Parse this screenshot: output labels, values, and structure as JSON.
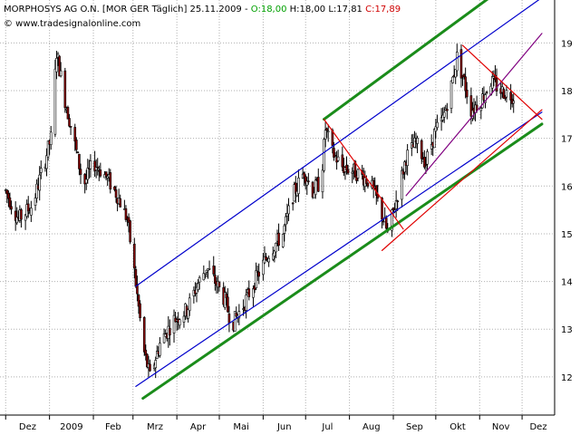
{
  "header": {
    "title_prefix": "MORPHOSYS AG O.N. [MOR GER  Täglich] 25.11.2009 - ",
    "open_text": "O:18,00",
    "high_text": " H:18,00",
    "low_text": " L:17,81",
    "close_text": " C:17,89",
    "copyright": "© www.tradesignalonline.com"
  },
  "colors": {
    "candle_up": "#ffffff",
    "candle_down": "#8b0000",
    "candle_outline": "#000000",
    "channel_blue": "#0000cc",
    "channel_green": "#1a8c1a",
    "triangle_red": "#e00000",
    "trend_purple": "#800080",
    "open_value": "#00a000",
    "close_value": "#d00000"
  },
  "chart_data": {
    "type": "candlestick",
    "title": "MORPHOSYS AG O.N. [MOR GER  Täglich] 25.11.2009",
    "ohlc_last": {
      "open": 18.0,
      "high": 18.0,
      "low": 17.81,
      "close": 17.89
    },
    "y_axis": {
      "position": "right",
      "range": [
        11.2,
        19.9
      ],
      "ticks": [
        "12",
        "13",
        "14",
        "15",
        "16",
        "17",
        "18",
        "19"
      ]
    },
    "x_axis": {
      "ticks": [
        "Dez",
        "2009",
        "Feb",
        "Mrz",
        "Apr",
        "Mai",
        "Jun",
        "Jul",
        "Aug",
        "Sep",
        "Okt",
        "Nov",
        "Dez"
      ]
    },
    "grid": true,
    "price_path": [
      [
        "2008-12-01",
        15.9
      ],
      [
        "2008-12-10",
        15.3
      ],
      [
        "2008-12-20",
        15.6
      ],
      [
        "2009-01-02",
        17.0
      ],
      [
        "2009-01-06",
        18.8
      ],
      [
        "2009-01-12",
        17.8
      ],
      [
        "2009-01-18",
        17.0
      ],
      [
        "2009-01-25",
        16.0
      ],
      [
        "2009-02-01",
        16.5
      ],
      [
        "2009-02-10",
        16.2
      ],
      [
        "2009-02-18",
        15.8
      ],
      [
        "2009-02-25",
        15.3
      ],
      [
        "2009-03-02",
        14.2
      ],
      [
        "2009-03-06",
        13.2
      ],
      [
        "2009-03-09",
        12.5
      ],
      [
        "2009-03-13",
        12.0
      ],
      [
        "2009-03-20",
        12.7
      ],
      [
        "2009-03-30",
        13.2
      ],
      [
        "2009-04-08",
        13.4
      ],
      [
        "2009-04-15",
        13.9
      ],
      [
        "2009-04-22",
        14.3
      ],
      [
        "2009-04-30",
        13.9
      ],
      [
        "2009-05-05",
        13.6
      ],
      [
        "2009-05-10",
        13.1
      ],
      [
        "2009-05-18",
        13.5
      ],
      [
        "2009-05-26",
        14.0
      ],
      [
        "2009-06-05",
        14.6
      ],
      [
        "2009-06-15",
        15.0
      ],
      [
        "2009-06-22",
        15.8
      ],
      [
        "2009-06-30",
        16.3
      ],
      [
        "2009-07-06",
        15.9
      ],
      [
        "2009-07-12",
        16.1
      ],
      [
        "2009-07-15",
        17.2
      ],
      [
        "2009-07-20",
        16.7
      ],
      [
        "2009-07-27",
        16.4
      ],
      [
        "2009-08-05",
        16.3
      ],
      [
        "2009-08-15",
        16.1
      ],
      [
        "2009-08-22",
        15.6
      ],
      [
        "2009-08-28",
        15.0
      ],
      [
        "2009-09-03",
        15.7
      ],
      [
        "2009-09-10",
        16.6
      ],
      [
        "2009-09-17",
        16.9
      ],
      [
        "2009-09-24",
        16.5
      ],
      [
        "2009-09-30",
        17.1
      ],
      [
        "2009-10-06",
        17.4
      ],
      [
        "2009-10-12",
        18.1
      ],
      [
        "2009-10-16",
        18.7
      ],
      [
        "2009-10-21",
        18.2
      ],
      [
        "2009-10-26",
        17.6
      ],
      [
        "2009-11-02",
        17.8
      ],
      [
        "2009-11-09",
        18.2
      ],
      [
        "2009-11-16",
        18.0
      ],
      [
        "2009-11-25",
        17.89
      ]
    ],
    "trendlines": [
      {
        "kind": "channel-upper",
        "color": "blue",
        "from": [
          "2009-03-03",
          13.9
        ],
        "to": [
          "2009-12-15",
          19.95
        ]
      },
      {
        "kind": "channel-lower",
        "color": "blue",
        "from": [
          "2009-03-03",
          11.8
        ],
        "to": [
          "2009-12-15",
          17.55
        ]
      },
      {
        "kind": "support",
        "color": "green",
        "from": [
          "2009-03-08",
          11.55
        ],
        "to": [
          "2009-12-15",
          17.3
        ]
      },
      {
        "kind": "resistance",
        "color": "green",
        "from": [
          "2009-07-14",
          17.4
        ],
        "to": [
          "2009-11-08",
          19.95
        ]
      },
      {
        "kind": "trend",
        "color": "purple",
        "from": [
          "2009-09-10",
          15.8
        ],
        "to": [
          "2009-12-15",
          19.2
        ]
      },
      {
        "kind": "triangle",
        "color": "red",
        "from": [
          "2009-07-14",
          17.4
        ],
        "to": [
          "2009-09-08",
          15.1
        ]
      },
      {
        "kind": "triangle",
        "color": "red",
        "from": [
          "2009-08-24",
          14.65
        ],
        "to": [
          "2009-12-15",
          17.6
        ]
      },
      {
        "kind": "triangle",
        "color": "red",
        "from": [
          "2009-10-20",
          18.95
        ],
        "to": [
          "2009-12-15",
          17.4
        ]
      }
    ]
  }
}
